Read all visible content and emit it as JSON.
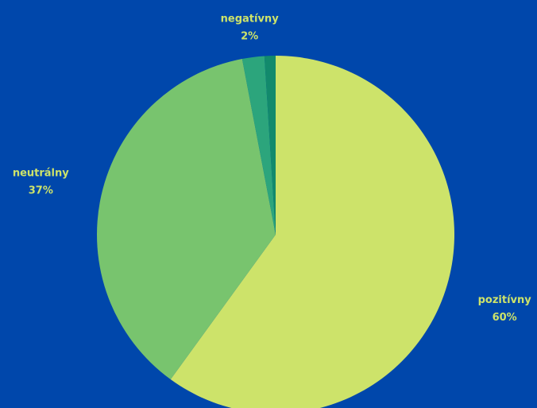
{
  "chart_data": {
    "type": "pie",
    "categories": [
      "pozitívny",
      "neutrálny",
      "negatívny",
      null
    ],
    "values": [
      60,
      37,
      2,
      1
    ],
    "value_labels": [
      "60%",
      "37%",
      "2%",
      null
    ],
    "colors": [
      "#cde36a",
      "#78c46e",
      "#2ca57c",
      "#128a6c"
    ],
    "label_color": "#cde36a",
    "background": "#0047ab"
  }
}
